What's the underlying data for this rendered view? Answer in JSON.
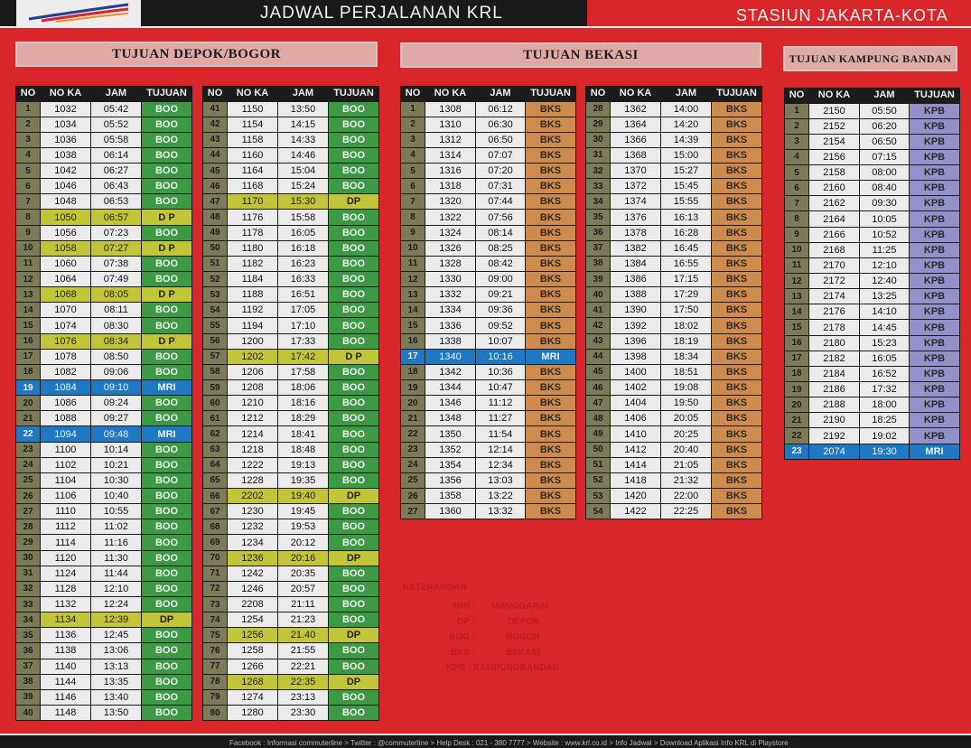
{
  "header": {
    "title": "JADWAL PERJALANAN KRL",
    "station": "STASIUN JAKARTA-KOTA"
  },
  "sections": {
    "depok_bogor": "TUJUAN DEPOK/BOGOR",
    "bekasi": "TUJUAN BEKASI",
    "kampung_bandan": "TUJUAN KAMPUNG BANDAN"
  },
  "columns": [
    "NO",
    "NO KA",
    "JAM",
    "TUJUAN"
  ],
  "colors": {
    "background": "#d8262b",
    "boo": "#3b9a43",
    "dp": "#c3c538",
    "mri": "#1e78c4",
    "bks": "#cf8a4e",
    "kpb": "#9490c9"
  },
  "tables": {
    "depok_bogor_1": [
      [
        "1",
        "1032",
        "05:42",
        "BOO"
      ],
      [
        "2",
        "1034",
        "05:52",
        "BOO"
      ],
      [
        "3",
        "1036",
        "05:58",
        "BOO"
      ],
      [
        "4",
        "1038",
        "06:14",
        "BOO"
      ],
      [
        "5",
        "1042",
        "06:27",
        "BOO"
      ],
      [
        "6",
        "1046",
        "06:43",
        "BOO"
      ],
      [
        "7",
        "1048",
        "06:53",
        "BOO"
      ],
      [
        "8",
        "1050",
        "06:57",
        "D P"
      ],
      [
        "9",
        "1056",
        "07:23",
        "BOO"
      ],
      [
        "10",
        "1058",
        "07:27",
        "D P"
      ],
      [
        "11",
        "1060",
        "07:38",
        "BOO"
      ],
      [
        "12",
        "1064",
        "07:49",
        "BOO"
      ],
      [
        "13",
        "1068",
        "08:05",
        "D P"
      ],
      [
        "14",
        "1070",
        "08:11",
        "BOO"
      ],
      [
        "15",
        "1074",
        "08:30",
        "BOO"
      ],
      [
        "16",
        "1076",
        "08:34",
        "D P"
      ],
      [
        "17",
        "1078",
        "08:50",
        "BOO"
      ],
      [
        "18",
        "1082",
        "09:06",
        "BOO"
      ],
      [
        "19",
        "1084",
        "09:10",
        "MRI"
      ],
      [
        "20",
        "1086",
        "09:24",
        "BOO"
      ],
      [
        "21",
        "1088",
        "09:27",
        "BOO"
      ],
      [
        "22",
        "1094",
        "09:48",
        "MRI"
      ],
      [
        "23",
        "1100",
        "10:14",
        "BOO"
      ],
      [
        "24",
        "1102",
        "10:21",
        "BOO"
      ],
      [
        "25",
        "1104",
        "10:30",
        "BOO"
      ],
      [
        "26",
        "1106",
        "10:40",
        "BOO"
      ],
      [
        "27",
        "1110",
        "10:55",
        "BOO"
      ],
      [
        "28",
        "1112",
        "11:02",
        "BOO"
      ],
      [
        "29",
        "1114",
        "11:16",
        "BOO"
      ],
      [
        "30",
        "1120",
        "11:30",
        "BOO"
      ],
      [
        "31",
        "1124",
        "11:44",
        "BOO"
      ],
      [
        "32",
        "1128",
        "12:10",
        "BOO"
      ],
      [
        "33",
        "1132",
        "12:24",
        "BOO"
      ],
      [
        "34",
        "1134",
        "12:39",
        "DP"
      ],
      [
        "35",
        "1136",
        "12:45",
        "BOO"
      ],
      [
        "36",
        "1138",
        "13:06",
        "BOO"
      ],
      [
        "37",
        "1140",
        "13:13",
        "BOO"
      ],
      [
        "38",
        "1144",
        "13:35",
        "BOO"
      ],
      [
        "39",
        "1146",
        "13:40",
        "BOO"
      ],
      [
        "40",
        "1148",
        "13:50",
        "BOO"
      ]
    ],
    "depok_bogor_2": [
      [
        "41",
        "1150",
        "13:50",
        "BOO"
      ],
      [
        "42",
        "1154",
        "14:15",
        "BOO"
      ],
      [
        "43",
        "1158",
        "14:33",
        "BOO"
      ],
      [
        "44",
        "1160",
        "14:46",
        "BOO"
      ],
      [
        "45",
        "1164",
        "15:04",
        "BOO"
      ],
      [
        "46",
        "1168",
        "15:24",
        "BOO"
      ],
      [
        "47",
        "1170",
        "15:30",
        "DP"
      ],
      [
        "48",
        "1176",
        "15:58",
        "BOO"
      ],
      [
        "49",
        "1178",
        "16:05",
        "BOO"
      ],
      [
        "50",
        "1180",
        "16:18",
        "BOO"
      ],
      [
        "51",
        "1182",
        "16:23",
        "BOO"
      ],
      [
        "52",
        "1184",
        "16:33",
        "BOO"
      ],
      [
        "53",
        "1188",
        "16:51",
        "BOO"
      ],
      [
        "54",
        "1192",
        "17:05",
        "BOO"
      ],
      [
        "55",
        "1194",
        "17:10",
        "BOO"
      ],
      [
        "56",
        "1200",
        "17:33",
        "BOO"
      ],
      [
        "57",
        "1202",
        "17:42",
        "D P"
      ],
      [
        "58",
        "1206",
        "17:58",
        "BOO"
      ],
      [
        "59",
        "1208",
        "18:06",
        "BOO"
      ],
      [
        "60",
        "1210",
        "18:16",
        "BOO"
      ],
      [
        "61",
        "1212",
        "18:29",
        "BOO"
      ],
      [
        "62",
        "1214",
        "18:41",
        "BOO"
      ],
      [
        "63",
        "1218",
        "18:48",
        "BOO"
      ],
      [
        "64",
        "1222",
        "19:13",
        "BOO"
      ],
      [
        "65",
        "1228",
        "19:35",
        "BOO"
      ],
      [
        "66",
        "2202",
        "19:40",
        "DP"
      ],
      [
        "67",
        "1230",
        "19:45",
        "BOO"
      ],
      [
        "68",
        "1232",
        "19:53",
        "BOO"
      ],
      [
        "69",
        "1234",
        "20:12",
        "BOO"
      ],
      [
        "70",
        "1236",
        "20:16",
        "DP"
      ],
      [
        "71",
        "1242",
        "20:35",
        "BOO"
      ],
      [
        "72",
        "1246",
        "20:57",
        "BOO"
      ],
      [
        "73",
        "2208",
        "21:11",
        "BOO"
      ],
      [
        "74",
        "1254",
        "21:23",
        "BOO"
      ],
      [
        "75",
        "1256",
        "21.40",
        "DP"
      ],
      [
        "76",
        "1258",
        "21:55",
        "BOO"
      ],
      [
        "77",
        "1266",
        "22:21",
        "BOO"
      ],
      [
        "78",
        "1268",
        "22:35",
        "DP"
      ],
      [
        "79",
        "1274",
        "23:13",
        "BOO"
      ],
      [
        "80",
        "1280",
        "23:30",
        "BOO"
      ]
    ],
    "bekasi_1": [
      [
        "1",
        "1308",
        "06:12",
        "BKS"
      ],
      [
        "2",
        "1310",
        "06:30",
        "BKS"
      ],
      [
        "3",
        "1312",
        "06:50",
        "BKS"
      ],
      [
        "4",
        "1314",
        "07:07",
        "BKS"
      ],
      [
        "5",
        "1316",
        "07:20",
        "BKS"
      ],
      [
        "6",
        "1318",
        "07:31",
        "BKS"
      ],
      [
        "7",
        "1320",
        "07:44",
        "BKS"
      ],
      [
        "8",
        "1322",
        "07:56",
        "BKS"
      ],
      [
        "9",
        "1324",
        "08:14",
        "BKS"
      ],
      [
        "10",
        "1326",
        "08:25",
        "BKS"
      ],
      [
        "11",
        "1328",
        "08:42",
        "BKS"
      ],
      [
        "12",
        "1330",
        "09:00",
        "BKS"
      ],
      [
        "13",
        "1332",
        "09:21",
        "BKS"
      ],
      [
        "14",
        "1334",
        "09:36",
        "BKS"
      ],
      [
        "15",
        "1336",
        "09:52",
        "BKS"
      ],
      [
        "16",
        "1338",
        "10:07",
        "BKS"
      ],
      [
        "17",
        "1340",
        "10:16",
        "MRI"
      ],
      [
        "18",
        "1342",
        "10:36",
        "BKS"
      ],
      [
        "19",
        "1344",
        "10:47",
        "BKS"
      ],
      [
        "20",
        "1346",
        "11:12",
        "BKS"
      ],
      [
        "21",
        "1348",
        "11:27",
        "BKS"
      ],
      [
        "22",
        "1350",
        "11:54",
        "BKS"
      ],
      [
        "23",
        "1352",
        "12:14",
        "BKS"
      ],
      [
        "24",
        "1354",
        "12:34",
        "BKS"
      ],
      [
        "25",
        "1356",
        "13:03",
        "BKS"
      ],
      [
        "26",
        "1358",
        "13:22",
        "BKS"
      ],
      [
        "27",
        "1360",
        "13:32",
        "BKS"
      ]
    ],
    "bekasi_2": [
      [
        "28",
        "1362",
        "14:00",
        "BKS"
      ],
      [
        "29",
        "1364",
        "14:20",
        "BKS"
      ],
      [
        "30",
        "1366",
        "14:39",
        "BKS"
      ],
      [
        "31",
        "1368",
        "15:00",
        "BKS"
      ],
      [
        "32",
        "1370",
        "15:27",
        "BKS"
      ],
      [
        "33",
        "1372",
        "15:45",
        "BKS"
      ],
      [
        "34",
        "1374",
        "15:55",
        "BKS"
      ],
      [
        "35",
        "1376",
        "16:13",
        "BKS"
      ],
      [
        "36",
        "1378",
        "16:28",
        "BKS"
      ],
      [
        "37",
        "1382",
        "16:45",
        "BKS"
      ],
      [
        "38",
        "1384",
        "16:55",
        "BKS"
      ],
      [
        "39",
        "1386",
        "17:15",
        "BKS"
      ],
      [
        "40",
        "1388",
        "17:29",
        "BKS"
      ],
      [
        "41",
        "1390",
        "17:50",
        "BKS"
      ],
      [
        "42",
        "1392",
        "18:02",
        "BKS"
      ],
      [
        "43",
        "1396",
        "18:19",
        "BKS"
      ],
      [
        "44",
        "1398",
        "18:34",
        "BKS"
      ],
      [
        "45",
        "1400",
        "18:51",
        "BKS"
      ],
      [
        "46",
        "1402",
        "19:08",
        "BKS"
      ],
      [
        "47",
        "1404",
        "19:50",
        "BKS"
      ],
      [
        "48",
        "1406",
        "20:05",
        "BKS"
      ],
      [
        "49",
        "1410",
        "20:25",
        "BKS"
      ],
      [
        "50",
        "1412",
        "20:40",
        "BKS"
      ],
      [
        "51",
        "1414",
        "21:05",
        "BKS"
      ],
      [
        "52",
        "1418",
        "21:32",
        "BKS"
      ],
      [
        "53",
        "1420",
        "22:00",
        "BKS"
      ],
      [
        "54",
        "1422",
        "22:25",
        "BKS"
      ]
    ],
    "kampung_bandan": [
      [
        "1",
        "2150",
        "05:50",
        "KPB"
      ],
      [
        "2",
        "2152",
        "06:20",
        "KPB"
      ],
      [
        "3",
        "2154",
        "06:50",
        "KPB"
      ],
      [
        "4",
        "2156",
        "07:15",
        "KPB"
      ],
      [
        "5",
        "2158",
        "08:00",
        "KPB"
      ],
      [
        "6",
        "2160",
        "08:40",
        "KPB"
      ],
      [
        "7",
        "2162",
        "09:30",
        "KPB"
      ],
      [
        "8",
        "2164",
        "10:05",
        "KPB"
      ],
      [
        "9",
        "2166",
        "10:52",
        "KPB"
      ],
      [
        "10",
        "2168",
        "11:25",
        "KPB"
      ],
      [
        "11",
        "2170",
        "12:10",
        "KPB"
      ],
      [
        "12",
        "2172",
        "12:40",
        "KPB"
      ],
      [
        "13",
        "2174",
        "13:25",
        "KPB"
      ],
      [
        "14",
        "2176",
        "14:10",
        "KPB"
      ],
      [
        "15",
        "2178",
        "14:45",
        "KPB"
      ],
      [
        "16",
        "2180",
        "15:23",
        "KPB"
      ],
      [
        "17",
        "2182",
        "16:05",
        "KPB"
      ],
      [
        "18",
        "2184",
        "16:52",
        "KPB"
      ],
      [
        "19",
        "2186",
        "17:32",
        "KPB"
      ],
      [
        "20",
        "2188",
        "18:00",
        "KPB"
      ],
      [
        "21",
        "2190",
        "18:25",
        "KPB"
      ],
      [
        "22",
        "2192",
        "19:02",
        "KPB"
      ],
      [
        "23",
        "2074",
        "19:30",
        "MRI"
      ]
    ]
  },
  "legend": {
    "title": "KETERANGAN",
    "items": [
      {
        "code": "MRI :",
        "desc": "MANGGARAI"
      },
      {
        "code": "DP :",
        "desc": "DEPOK"
      },
      {
        "code": "BOO :",
        "desc": "BOGOR"
      },
      {
        "code": "BKS :",
        "desc": "BEKASI"
      },
      {
        "code": "KPB : KAMPUNGBANDAN",
        "desc": ""
      }
    ]
  },
  "footer": "Facebook : Informasi commuterline > Twitter : @commuterline > Help Desk : 021 - 380 7777 > Website : www.krl.co.id > Info Jadwal > Download Aplikasi Info KRL di Playstore"
}
